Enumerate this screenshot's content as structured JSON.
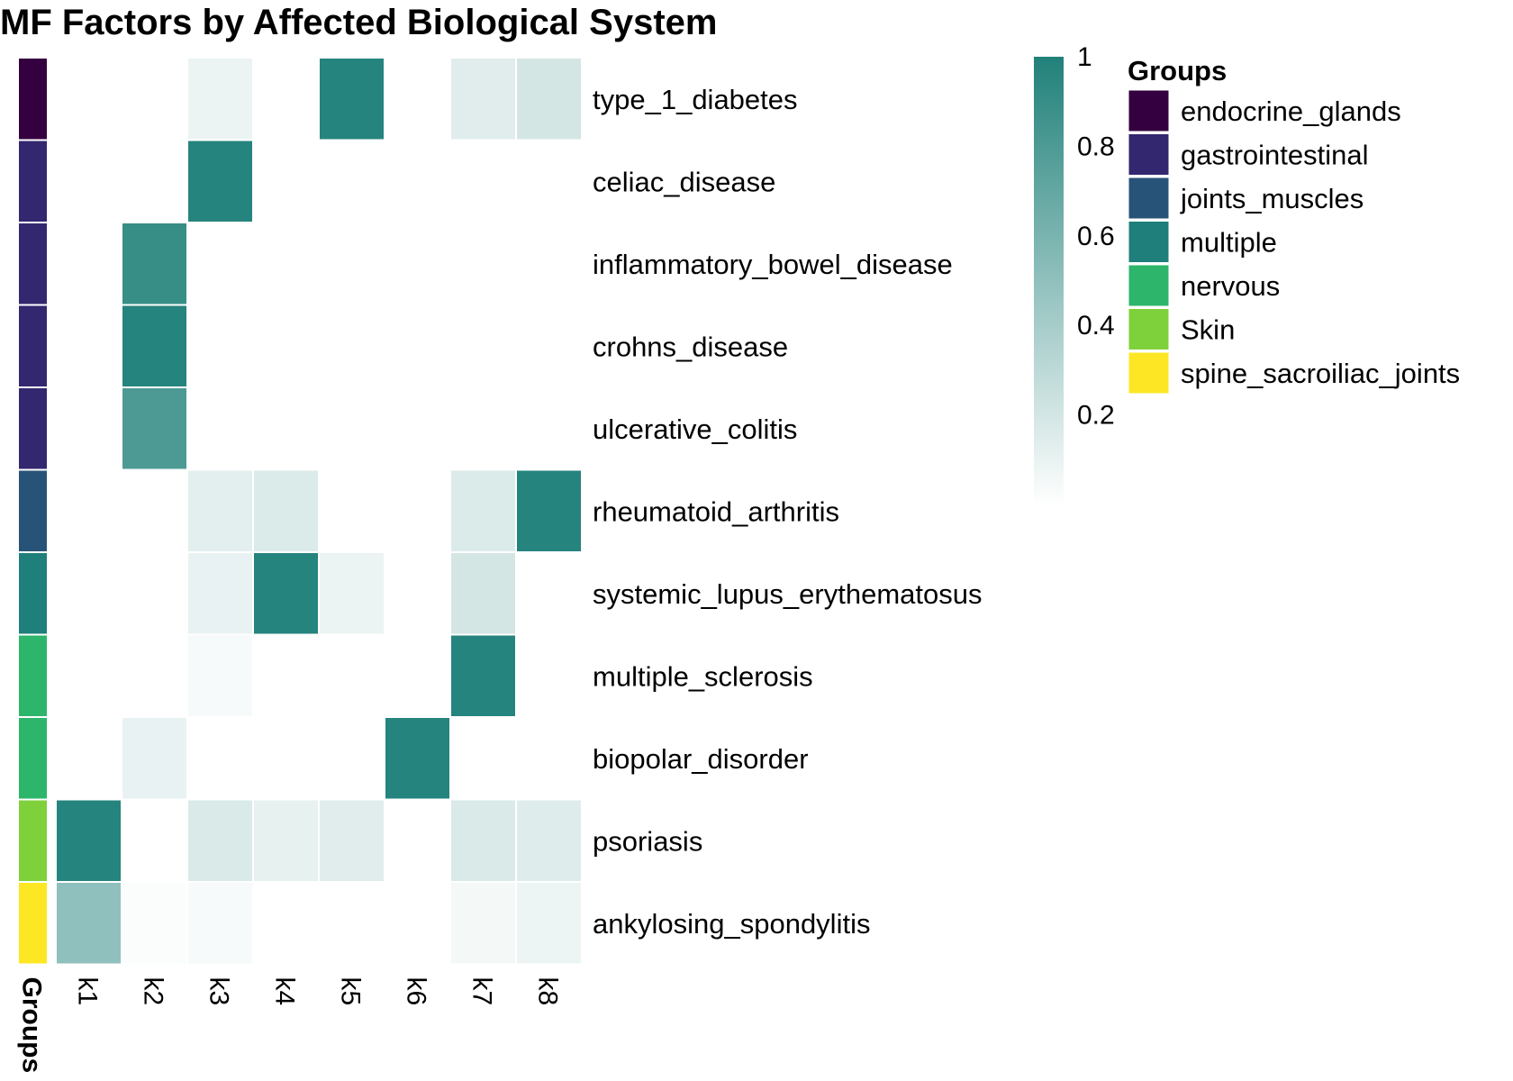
{
  "chart_data": {
    "type": "heatmap",
    "title": "MF Factors by Affected Biological System",
    "columns": [
      "k1",
      "k2",
      "k3",
      "k4",
      "k5",
      "k6",
      "k7",
      "k8"
    ],
    "annotation_label": "Groups",
    "rows": [
      {
        "name": "type_1_diabetes",
        "group": "endocrine_glands",
        "values": [
          0,
          0,
          0.09,
          0,
          0.98,
          0,
          0.14,
          0.2
        ]
      },
      {
        "name": "celiac_disease",
        "group": "gastrointestinal",
        "values": [
          0,
          0,
          0.98,
          0,
          0,
          0,
          0,
          0
        ]
      },
      {
        "name": "inflammatory_bowel_disease",
        "group": "gastrointestinal",
        "values": [
          0,
          0.9,
          0,
          0,
          0,
          0,
          0,
          0
        ]
      },
      {
        "name": "crohns_disease",
        "group": "gastrointestinal",
        "values": [
          0,
          0.98,
          0,
          0,
          0,
          0,
          0,
          0
        ]
      },
      {
        "name": "ulcerative_colitis",
        "group": "gastrointestinal",
        "values": [
          0,
          0.8,
          0,
          0,
          0,
          0,
          0,
          0
        ]
      },
      {
        "name": "rheumatoid_arthritis",
        "group": "joints_muscles",
        "values": [
          0,
          0,
          0.13,
          0.16,
          0,
          0,
          0.16,
          0.98
        ]
      },
      {
        "name": "systemic_lupus_erythematosus",
        "group": "multiple",
        "values": [
          0,
          0,
          0.1,
          0.98,
          0.09,
          0,
          0.2,
          0
        ]
      },
      {
        "name": "multiple_sclerosis",
        "group": "nervous",
        "values": [
          0,
          0,
          0.04,
          0,
          0,
          0,
          0.98,
          0
        ]
      },
      {
        "name": "biopolar_disorder",
        "group": "nervous",
        "values": [
          0,
          0.1,
          0,
          0,
          0,
          0.98,
          0,
          0
        ]
      },
      {
        "name": "psoriasis",
        "group": "Skin",
        "values": [
          0.98,
          0,
          0.17,
          0.11,
          0.14,
          0,
          0.17,
          0.15
        ]
      },
      {
        "name": "ankylosing_spondylitis",
        "group": "spine_sacroiliac_joints",
        "values": [
          0.5,
          0.02,
          0.04,
          0,
          0,
          0,
          0.05,
          0.08
        ]
      }
    ],
    "colorbar": {
      "ticks": [
        "1",
        "0.8",
        "0.6",
        "0.4",
        "0.2"
      ],
      "range": [
        0,
        1
      ],
      "color_low": "#ffffff",
      "color_high": "#21817a"
    },
    "legend": {
      "title": "Groups",
      "entries": [
        {
          "label": "endocrine_glands",
          "color": "#35003f"
        },
        {
          "label": "gastrointestinal",
          "color": "#33276f"
        },
        {
          "label": "joints_muscles",
          "color": "#285378"
        },
        {
          "label": "multiple",
          "color": "#1f7f7a"
        },
        {
          "label": "nervous",
          "color": "#2db56b"
        },
        {
          "label": "Skin",
          "color": "#7fd13b"
        },
        {
          "label": "spine_sacroiliac_joints",
          "color": "#fde725"
        }
      ]
    }
  }
}
